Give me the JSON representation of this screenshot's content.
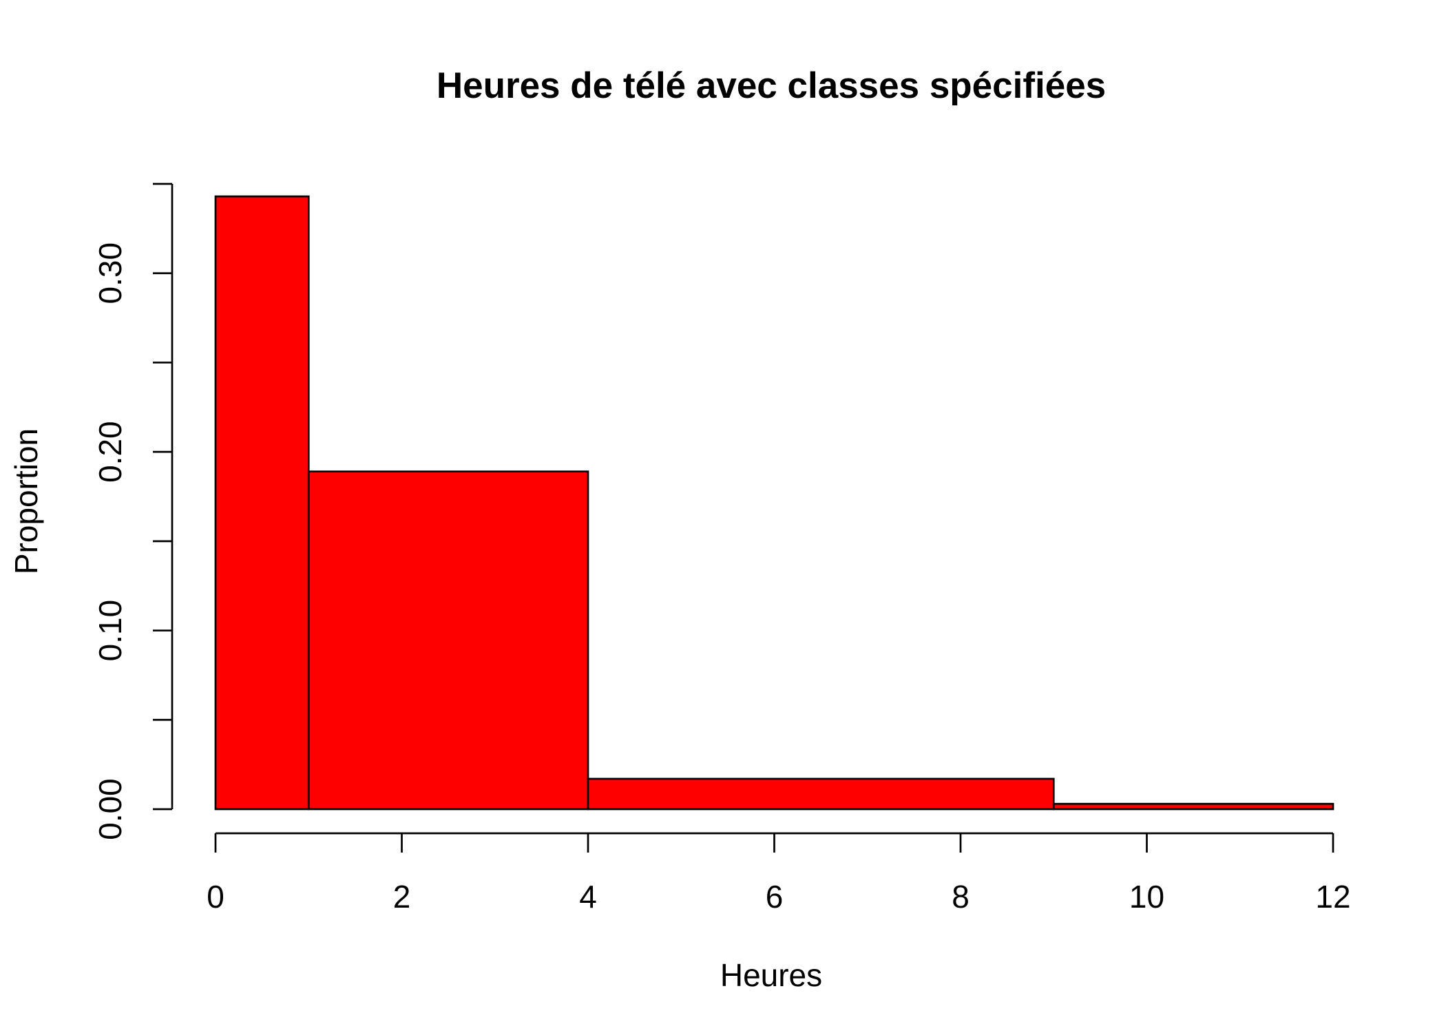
{
  "chart_data": {
    "type": "bar",
    "title": "Heures de télé avec classes spécifiées",
    "xlabel": "Heures",
    "ylabel": "Proportion",
    "bins": [
      {
        "from": 0,
        "to": 1,
        "value": 0.343
      },
      {
        "from": 1,
        "to": 4,
        "value": 0.189
      },
      {
        "from": 4,
        "to": 9,
        "value": 0.017
      },
      {
        "from": 9,
        "to": 12,
        "value": 0.003
      }
    ],
    "xlim": [
      0,
      12
    ],
    "ylim": [
      0,
      0.35
    ],
    "x_ticks": [
      {
        "value": 0,
        "label": "0"
      },
      {
        "value": 2,
        "label": "2"
      },
      {
        "value": 4,
        "label": "4"
      },
      {
        "value": 6,
        "label": "6"
      },
      {
        "value": 8,
        "label": "8"
      },
      {
        "value": 10,
        "label": "10"
      },
      {
        "value": 12,
        "label": "12"
      }
    ],
    "y_ticks": [
      {
        "value": 0.0,
        "label": "0.00"
      },
      {
        "value": 0.05,
        "label": ""
      },
      {
        "value": 0.1,
        "label": "0.10"
      },
      {
        "value": 0.15,
        "label": ""
      },
      {
        "value": 0.2,
        "label": "0.20"
      },
      {
        "value": 0.25,
        "label": ""
      },
      {
        "value": 0.3,
        "label": "0.30"
      },
      {
        "value": 0.35,
        "label": ""
      }
    ],
    "bar_color": "#ff0000",
    "grid": false,
    "legend": "none"
  }
}
